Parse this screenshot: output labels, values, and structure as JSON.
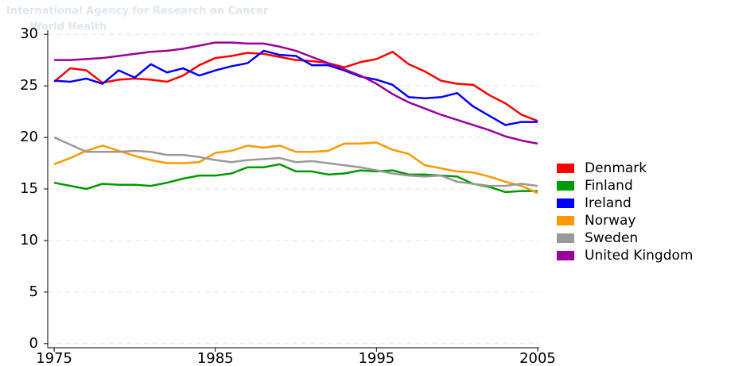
{
  "chart_data": {
    "type": "line",
    "watermark": [
      "International Agency for Research on Cancer",
      "World Health"
    ],
    "x": [
      1975,
      1976,
      1977,
      1978,
      1979,
      1980,
      1981,
      1982,
      1983,
      1984,
      1985,
      1986,
      1987,
      1988,
      1989,
      1990,
      1991,
      1992,
      1993,
      1994,
      1995,
      1996,
      1997,
      1998,
      1999,
      2000,
      2001,
      2002,
      2003,
      2004,
      2005
    ],
    "series": [
      {
        "name": "Denmark",
        "color": "#ff0000",
        "values": [
          25.4,
          26.7,
          26.5,
          25.3,
          25.6,
          25.7,
          25.6,
          25.4,
          26.0,
          27.0,
          27.7,
          27.9,
          28.2,
          28.1,
          27.8,
          27.5,
          27.4,
          27.2,
          26.8,
          27.3,
          27.6,
          28.3,
          27.1,
          26.4,
          25.5,
          25.2,
          25.1,
          24.1,
          23.3,
          22.2,
          21.6
        ]
      },
      {
        "name": "Finland",
        "color": "#009900",
        "values": [
          15.6,
          15.3,
          15.0,
          15.5,
          15.4,
          15.4,
          15.3,
          15.6,
          16.0,
          16.3,
          16.3,
          16.5,
          17.1,
          17.1,
          17.4,
          16.7,
          16.7,
          16.4,
          16.5,
          16.8,
          16.7,
          16.8,
          16.4,
          16.4,
          16.3,
          16.2,
          15.5,
          15.2,
          14.7,
          14.8,
          14.8
        ]
      },
      {
        "name": "Ireland",
        "color": "#0000ff",
        "values": [
          25.5,
          25.4,
          25.7,
          25.2,
          26.5,
          25.8,
          27.1,
          26.3,
          26.7,
          26.0,
          26.5,
          26.9,
          27.2,
          28.4,
          28.0,
          27.9,
          27.0,
          27.0,
          26.5,
          25.9,
          25.6,
          25.1,
          23.9,
          23.8,
          23.9,
          24.3,
          23.0,
          22.1,
          21.2,
          21.5,
          21.5
        ]
      },
      {
        "name": "Norway",
        "color": "#ff9900",
        "values": [
          17.4,
          18.0,
          18.7,
          19.2,
          18.7,
          18.2,
          17.8,
          17.5,
          17.5,
          17.6,
          18.5,
          18.7,
          19.2,
          19.0,
          19.2,
          18.6,
          18.6,
          18.7,
          19.4,
          19.4,
          19.5,
          18.8,
          18.4,
          17.3,
          17.0,
          16.7,
          16.6,
          16.2,
          15.7,
          15.3,
          14.6
        ]
      },
      {
        "name": "Sweden",
        "color": "#999999",
        "values": [
          20.0,
          19.3,
          18.6,
          18.6,
          18.6,
          18.7,
          18.6,
          18.3,
          18.3,
          18.1,
          17.8,
          17.6,
          17.8,
          17.9,
          18.0,
          17.6,
          17.7,
          17.5,
          17.3,
          17.1,
          16.8,
          16.5,
          16.3,
          16.2,
          16.3,
          15.7,
          15.5,
          15.3,
          15.3,
          15.5,
          15.3
        ]
      },
      {
        "name": "United Kingdom",
        "color": "#990099",
        "values": [
          27.5,
          27.5,
          27.6,
          27.7,
          27.9,
          28.1,
          28.3,
          28.4,
          28.6,
          28.9,
          29.2,
          29.2,
          29.1,
          29.1,
          28.8,
          28.4,
          27.8,
          27.2,
          26.6,
          26.0,
          25.2,
          24.2,
          23.4,
          22.8,
          22.2,
          21.7,
          21.2,
          20.7,
          20.1,
          19.7,
          19.4
        ]
      }
    ],
    "xlim": [
      1974.6,
      2005.1
    ],
    "xticks": [
      1975,
      1985,
      1995,
      2005
    ],
    "ylim": [
      -0.4,
      30.4
    ],
    "yticks": [
      0,
      5,
      10,
      15,
      20,
      25,
      30
    ],
    "grid": true,
    "legend": "right"
  }
}
